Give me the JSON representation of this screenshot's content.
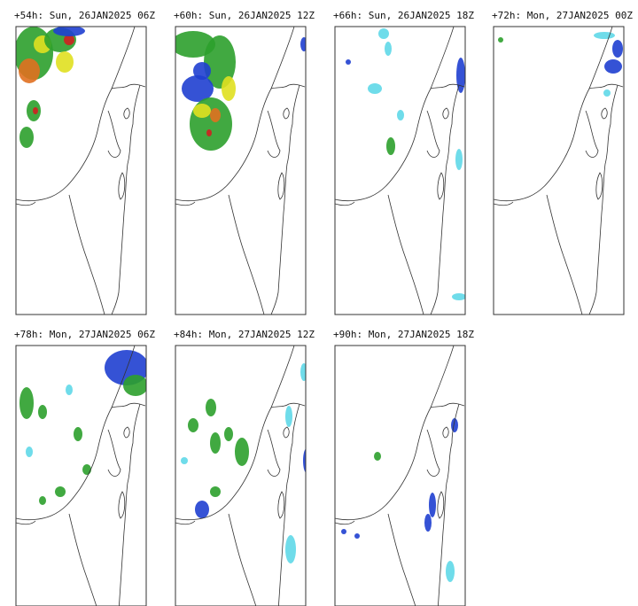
{
  "panels": [
    {
      "title": "+54h: Sun, 26JAN2025 06Z"
    },
    {
      "title": "+60h: Sun, 26JAN2025 12Z"
    },
    {
      "title": "+66h: Sun, 26JAN2025 18Z"
    },
    {
      "title": "+72h: Mon, 27JAN2025 00Z"
    },
    {
      "title": "+78h: Mon, 27JAN2025 06Z"
    },
    {
      "title": "+84h: Mon, 27JAN2025 12Z"
    },
    {
      "title": "+90h: Mon, 27JAN2025 18Z"
    }
  ]
}
